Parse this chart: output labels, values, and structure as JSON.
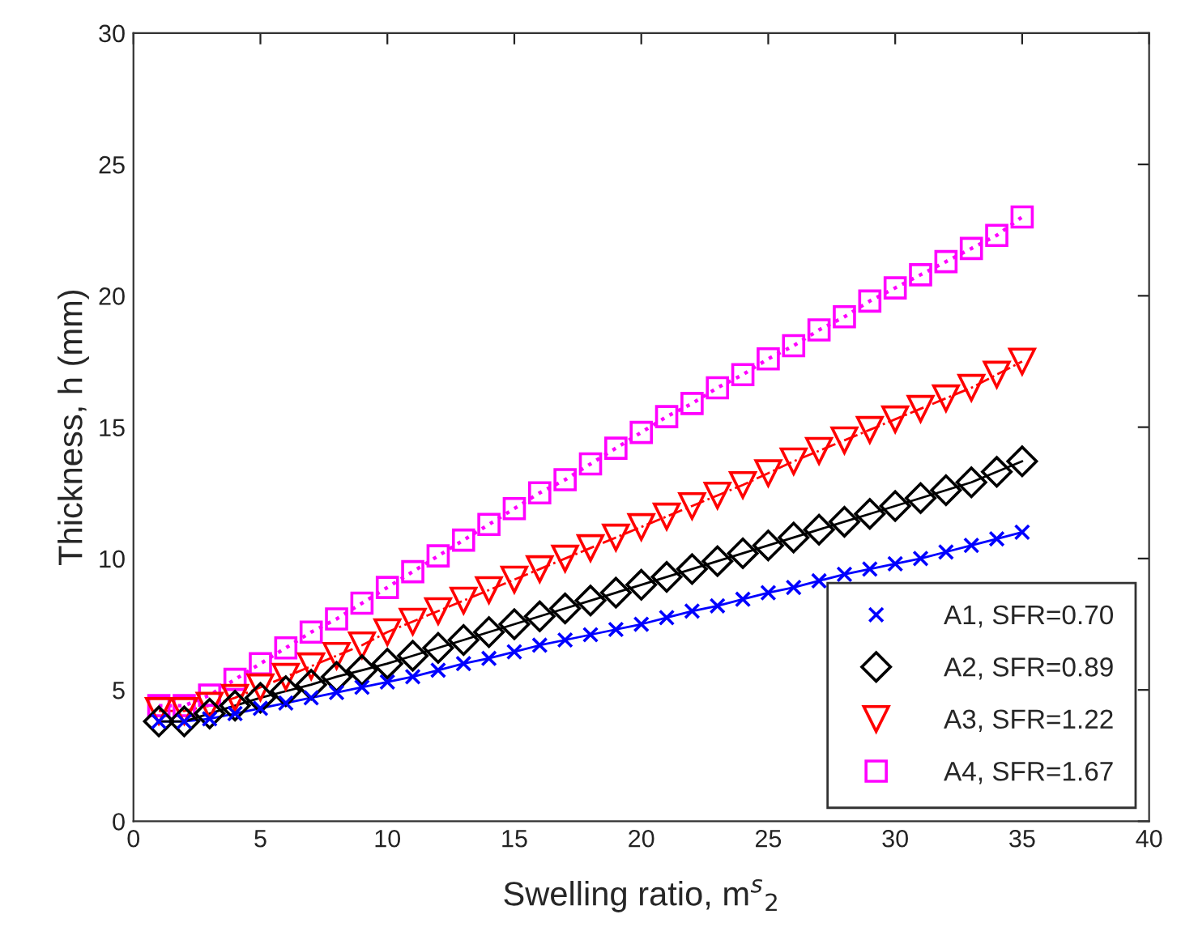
{
  "chart_data": {
    "type": "line",
    "xlabel": "Swelling ratio, m$^{s}$$_{2}$",
    "ylabel": "Thickness, h (mm)",
    "x": [
      1,
      2,
      3,
      4,
      5,
      6,
      7,
      8,
      9,
      10,
      11,
      12,
      13,
      14,
      15,
      16,
      17,
      18,
      19,
      20,
      21,
      22,
      23,
      24,
      25,
      26,
      27,
      28,
      29,
      30,
      31,
      32,
      33,
      34,
      35
    ],
    "series": [
      {
        "name": "A1, SFR=0.70",
        "color": "#0000ff",
        "marker": "cross",
        "line_style": "solid",
        "values": [
          3.8,
          3.8,
          3.9,
          4.1,
          4.3,
          4.5,
          4.7,
          4.9,
          5.1,
          5.3,
          5.5,
          5.75,
          6.0,
          6.2,
          6.45,
          6.7,
          6.9,
          7.1,
          7.3,
          7.5,
          7.75,
          8.0,
          8.2,
          8.45,
          8.7,
          8.9,
          9.15,
          9.4,
          9.6,
          9.8,
          10.0,
          10.25,
          10.5,
          10.75,
          11.0
        ]
      },
      {
        "name": "A2, SFR=0.89",
        "color": "#000000",
        "marker": "diamond",
        "line_style": "solid",
        "values": [
          3.8,
          3.8,
          4.1,
          4.4,
          4.7,
          4.95,
          5.2,
          5.5,
          5.75,
          6.0,
          6.3,
          6.6,
          6.9,
          7.2,
          7.5,
          7.8,
          8.1,
          8.4,
          8.7,
          9.0,
          9.3,
          9.6,
          9.9,
          10.2,
          10.5,
          10.8,
          11.1,
          11.4,
          11.7,
          12.0,
          12.3,
          12.6,
          12.9,
          13.3,
          13.7
        ]
      },
      {
        "name": "A3, SFR=1.22",
        "color": "#ff0000",
        "marker": "triangle",
        "line_style": "dashed",
        "values": [
          4.2,
          4.2,
          4.4,
          4.7,
          5.1,
          5.5,
          5.9,
          6.3,
          6.7,
          7.2,
          7.6,
          8.0,
          8.4,
          8.8,
          9.2,
          9.6,
          10.0,
          10.4,
          10.8,
          11.2,
          11.6,
          12.0,
          12.4,
          12.8,
          13.25,
          13.7,
          14.1,
          14.5,
          14.9,
          15.3,
          15.7,
          16.1,
          16.5,
          17.0,
          17.5
        ]
      },
      {
        "name": "A4, SFR=1.67",
        "color": "#ff00ff",
        "marker": "square",
        "line_style": "dotted",
        "values": [
          4.4,
          4.4,
          4.8,
          5.4,
          6.0,
          6.6,
          7.2,
          7.7,
          8.3,
          8.9,
          9.5,
          10.1,
          10.7,
          11.3,
          11.9,
          12.5,
          13.0,
          13.6,
          14.2,
          14.8,
          15.4,
          15.9,
          16.5,
          17.0,
          17.6,
          18.1,
          18.7,
          19.2,
          19.8,
          20.3,
          20.8,
          21.3,
          21.8,
          22.3,
          23.0
        ]
      }
    ],
    "xlim": [
      0,
      40
    ],
    "xticks": [
      0,
      5,
      10,
      15,
      20,
      25,
      30,
      35,
      40
    ],
    "ylim": [
      0,
      30
    ],
    "yticks": [
      0,
      5,
      10,
      15,
      20,
      25,
      30
    ],
    "grid": false,
    "legend": "bottom right"
  }
}
